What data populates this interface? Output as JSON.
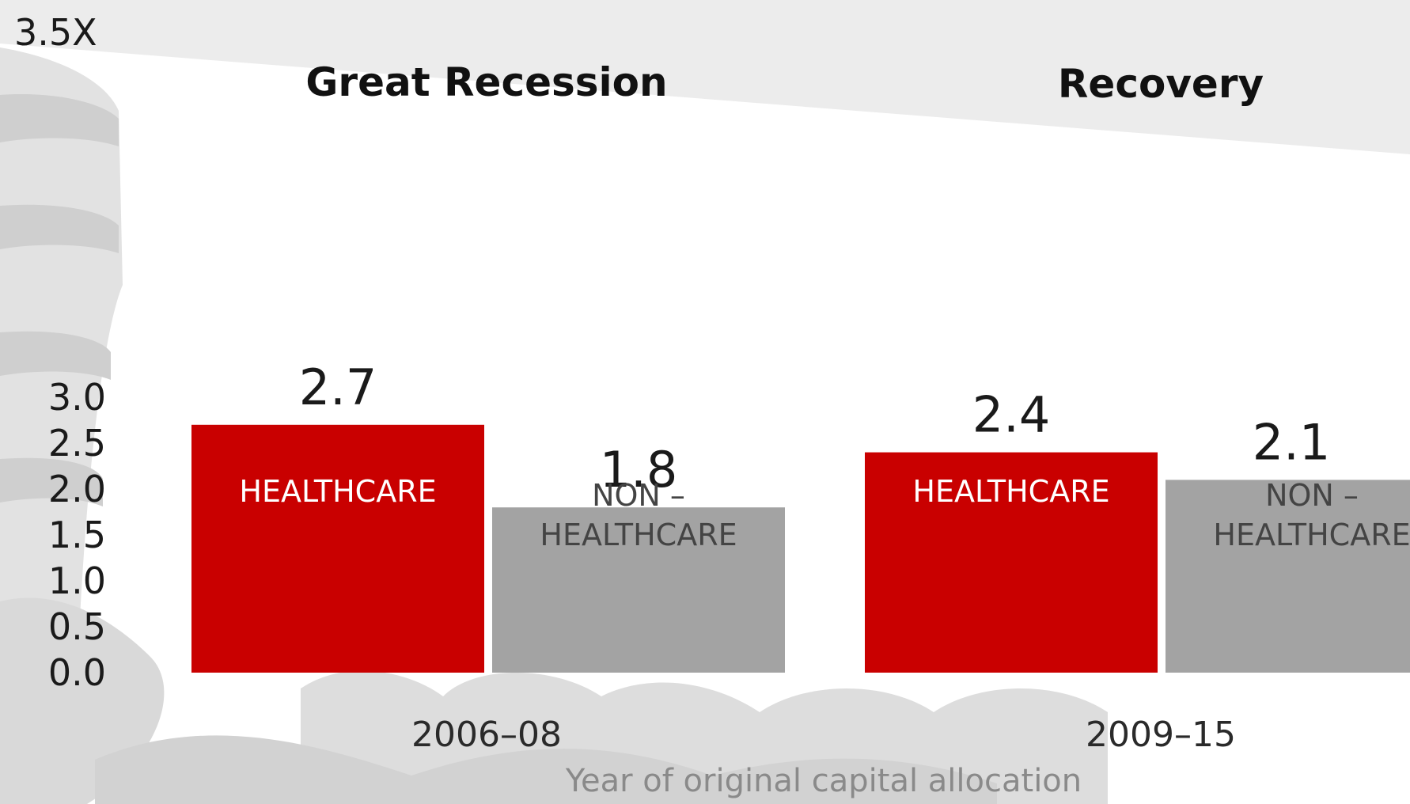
{
  "colors": {
    "healthcare": "#c90000",
    "non_healthcare": "#a3a3a3",
    "background": "#ececec"
  },
  "chart_data": {
    "type": "bar",
    "y_ticks": [
      "3.5X",
      "3.0",
      "2.5",
      "2.0",
      "1.5",
      "1.0",
      "0.5",
      "0.0"
    ],
    "ylim": [
      0,
      3.5
    ],
    "grid": false,
    "xlabel": "Year of original capital allocation",
    "groups": [
      {
        "title": "Great Recession",
        "period": "2006–08",
        "bars": [
          {
            "label": "HEALTHCARE",
            "series": "healthcare",
            "value": 2.7,
            "value_label": "2.7"
          },
          {
            "label": "NON –\nHEALTHCARE",
            "series": "non_healthcare",
            "value": 1.8,
            "value_label": "1.8"
          }
        ]
      },
      {
        "title": "Recovery",
        "period": "2009–15",
        "bars": [
          {
            "label": "HEALTHCARE",
            "series": "healthcare",
            "value": 2.4,
            "value_label": "2.4"
          },
          {
            "label": "NON –\nHEALTHCARE",
            "series": "non_healthcare",
            "value": 2.1,
            "value_label": "2.1"
          }
        ]
      }
    ]
  }
}
